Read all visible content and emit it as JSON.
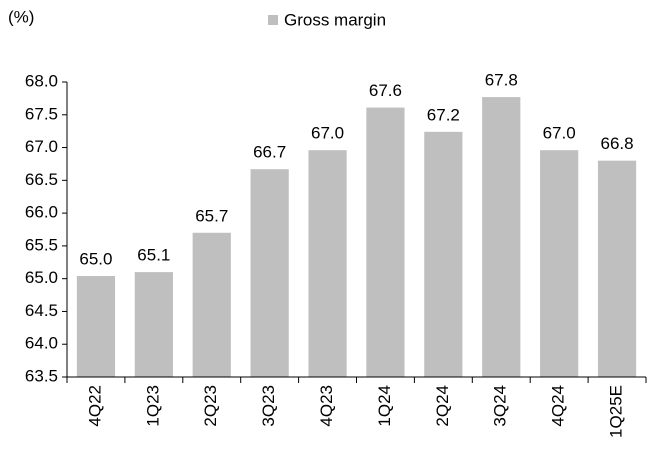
{
  "chart_data": {
    "type": "bar",
    "ylabel": "(%)",
    "categories": [
      "4Q22",
      "1Q23",
      "2Q23",
      "3Q23",
      "4Q23",
      "1Q24",
      "2Q24",
      "3Q24",
      "4Q24",
      "1Q25E"
    ],
    "series": [
      {
        "name": "Gross margin",
        "color": "#bfbfbf",
        "values": [
          65.04,
          65.1,
          65.7,
          66.67,
          66.96,
          67.61,
          67.24,
          67.77,
          66.96,
          66.8
        ],
        "value_labels": [
          "65.0",
          "65.1",
          "65.7",
          "66.7",
          "67.0",
          "67.6",
          "67.2",
          "67.8",
          "67.0",
          "66.8"
        ]
      }
    ],
    "ylim": [
      63.5,
      68.0
    ],
    "yticks": [
      63.5,
      {
        "value": 64,
        "label": "64.0"
      },
      64.5,
      {
        "value": 65,
        "label": "65.0"
      },
      65.5,
      {
        "value": 66,
        "label": "66.0"
      },
      66.5,
      {
        "value": 67,
        "label": "67.0"
      },
      67.5,
      {
        "value": 68,
        "label": "68.0"
      }
    ],
    "legend": "top",
    "grid": false
  }
}
